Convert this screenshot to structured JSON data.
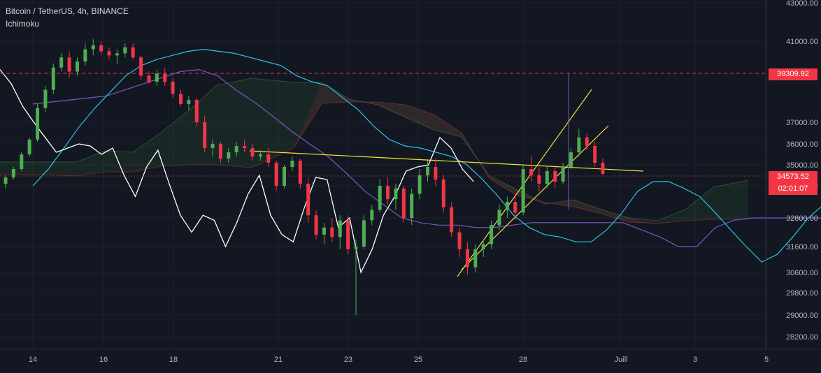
{
  "header": {
    "symbol_line": "Bitcoin / TetherUS, 4h, BINANCE",
    "indicator": "Ichimoku"
  },
  "colors": {
    "background": "#131722",
    "grid": "#1e222d",
    "up": "#26a69a",
    "up_candle": "#4caf50",
    "down": "#f23645",
    "tenkan": "#2bc2e6",
    "kijun": "#7e57c2",
    "chikou": "#ffffff",
    "trendline": "#f0e53b",
    "level": "#f23645",
    "text": "#b2b5be"
  },
  "badges": {
    "last_price": "34573.52",
    "countdown": "02:01:07",
    "level_price": "39309.92"
  },
  "chart_data": {
    "type": "candlestick",
    "title": "Bitcoin / TetherUS, 4h, BINANCE",
    "indicator": "Ichimoku",
    "y_axis": {
      "side": "right",
      "ticks": [
        43000,
        41000,
        37000,
        36000,
        35000,
        34000,
        32800,
        31600,
        30600,
        29800,
        29000,
        28200
      ],
      "tick_labels": [
        "43000.00",
        "41000.00",
        "37000.00",
        "36000.00",
        "35000.00",
        "34000.00",
        "32800.00",
        "31600.00",
        "30600.00",
        "29800.00",
        "29000.00",
        "28200.00"
      ]
    },
    "x_axis": {
      "ticks": [
        0,
        6,
        12,
        18,
        24,
        30,
        36,
        42,
        48,
        54,
        60
      ],
      "tick_labels": [
        "14",
        "16",
        "18",
        "21",
        "23",
        "25",
        "28",
        "Juill",
        "3",
        "5",
        ""
      ]
    },
    "candles": [
      [
        34100,
        34500,
        33900,
        34400
      ],
      [
        34400,
        34900,
        34300,
        34800
      ],
      [
        34800,
        35600,
        34700,
        35500
      ],
      [
        35500,
        36300,
        35400,
        36200
      ],
      [
        36200,
        37900,
        36100,
        37700
      ],
      [
        37700,
        38800,
        37500,
        38600
      ],
      [
        38600,
        39900,
        38400,
        39700
      ],
      [
        39700,
        40400,
        39500,
        40200
      ],
      [
        40200,
        40500,
        39200,
        39500
      ],
      [
        39500,
        40200,
        39300,
        40000
      ],
      [
        40000,
        40900,
        39800,
        40600
      ],
      [
        40600,
        41100,
        40300,
        40800
      ],
      [
        40800,
        41000,
        40300,
        40500
      ],
      [
        40500,
        40700,
        40100,
        40300
      ],
      [
        40300,
        40600,
        39900,
        40400
      ],
      [
        40400,
        40900,
        40200,
        40700
      ],
      [
        40700,
        40900,
        40100,
        40200
      ],
      [
        40200,
        40300,
        39100,
        39300
      ],
      [
        39300,
        39500,
        38900,
        39000
      ],
      [
        39000,
        39600,
        38800,
        39400
      ],
      [
        39400,
        39700,
        38800,
        39000
      ],
      [
        39000,
        39200,
        38200,
        38400
      ],
      [
        38400,
        38600,
        37800,
        37900
      ],
      [
        37900,
        38300,
        37600,
        38100
      ],
      [
        38100,
        38200,
        36800,
        37000
      ],
      [
        37000,
        37300,
        35600,
        35800
      ],
      [
        35800,
        36200,
        35400,
        36000
      ],
      [
        36000,
        36100,
        35100,
        35300
      ],
      [
        35300,
        35800,
        35100,
        35600
      ],
      [
        35600,
        36100,
        35400,
        35900
      ],
      [
        35900,
        36200,
        35600,
        35800
      ],
      [
        35800,
        36000,
        35200,
        35400
      ],
      [
        35400,
        35700,
        35200,
        35500
      ],
      [
        35500,
        35800,
        34900,
        35100
      ],
      [
        35100,
        35200,
        33800,
        34000
      ],
      [
        34000,
        35000,
        33900,
        34900
      ],
      [
        34900,
        35400,
        34700,
        35200
      ],
      [
        35200,
        35300,
        33900,
        34100
      ],
      [
        34100,
        34400,
        32600,
        32900
      ],
      [
        32900,
        33100,
        31900,
        32100
      ],
      [
        32100,
        32600,
        31700,
        32400
      ],
      [
        32400,
        32800,
        31800,
        32000
      ],
      [
        32000,
        32900,
        31500,
        32700
      ],
      [
        32700,
        32900,
        31300,
        31500
      ],
      [
        31500,
        31900,
        29000,
        31600
      ],
      [
        31600,
        32900,
        31500,
        32700
      ],
      [
        32700,
        33300,
        32500,
        33100
      ],
      [
        33100,
        34300,
        33000,
        34000
      ],
      [
        34000,
        34400,
        33300,
        33500
      ],
      [
        33500,
        34100,
        33100,
        33900
      ],
      [
        33900,
        34000,
        32600,
        32800
      ],
      [
        32800,
        33900,
        32500,
        33700
      ],
      [
        33700,
        34800,
        33500,
        34500
      ],
      [
        34500,
        35200,
        34200,
        34900
      ],
      [
        34900,
        35300,
        34000,
        34300
      ],
      [
        34300,
        34500,
        33000,
        33200
      ],
      [
        33200,
        33400,
        32000,
        32200
      ],
      [
        32200,
        32400,
        31200,
        31500
      ],
      [
        31500,
        31800,
        30500,
        30800
      ],
      [
        30800,
        31700,
        30600,
        31500
      ],
      [
        31500,
        31900,
        31200,
        31700
      ],
      [
        31700,
        32700,
        31500,
        32500
      ],
      [
        32500,
        33300,
        32300,
        33100
      ],
      [
        33100,
        33600,
        32800,
        33400
      ],
      [
        33400,
        33700,
        32700,
        33000
      ],
      [
        33000,
        35000,
        32900,
        34800
      ],
      [
        34800,
        35400,
        34200,
        34500
      ],
      [
        34500,
        34900,
        33800,
        34100
      ],
      [
        34100,
        34900,
        33900,
        34700
      ],
      [
        34700,
        34900,
        33900,
        34200
      ],
      [
        34200,
        35100,
        34100,
        34900
      ],
      [
        34900,
        35800,
        34800,
        35600
      ],
      [
        35600,
        36700,
        35400,
        36300
      ],
      [
        36300,
        36500,
        35700,
        35900
      ],
      [
        35900,
        36100,
        34900,
        35100
      ],
      [
        35100,
        35300,
        34500,
        34573.52
      ]
    ],
    "tenkan": [
      34000,
      34800,
      35800,
      36800,
      37700,
      38500,
      39300,
      39800,
      40100,
      40300,
      40500,
      40600,
      40500,
      40400,
      40200,
      40000,
      39800,
      39300,
      39000,
      38800,
      38200,
      37600,
      36800,
      36200,
      35900,
      35800,
      35600,
      35400,
      35000,
      34300,
      33600,
      32900,
      32400,
      32100,
      32000,
      31800,
      31800,
      32300,
      33000,
      33800,
      34200,
      34200,
      33900,
      33600,
      33000,
      32300,
      31600,
      31000,
      31300,
      32000,
      32800,
      33300,
      33800,
      34300,
      34700,
      35000,
      35200,
      35300
    ],
    "kijun": [
      37900,
      38000,
      38100,
      38200,
      38300,
      38600,
      38900,
      39200,
      39500,
      39600,
      39300,
      38600,
      38000,
      37300,
      36600,
      36000,
      35400,
      34600,
      33800,
      33300,
      32800,
      32600,
      32500,
      32500,
      32400,
      32400,
      32500,
      32600,
      32600,
      32600,
      32600,
      32600,
      32600,
      32300,
      32000,
      31600,
      31600,
      32400,
      32700,
      32800,
      32800,
      32800,
      32800,
      32800,
      32800,
      33200,
      33500,
      33600,
      33600
    ],
    "chikou": [
      39600,
      38900,
      37800,
      37000,
      36300,
      35600,
      35800,
      36000,
      35900,
      35500,
      35800,
      34500,
      33600,
      34900,
      35700,
      34100,
      32900,
      32200,
      32900,
      32700,
      31600,
      32600,
      33700,
      34500,
      32900,
      32100,
      31800,
      33200,
      34400,
      34300,
      32400,
      32800,
      30600,
      31500,
      32900,
      33600,
      34700,
      34900,
      35000,
      36300,
      35800,
      34800,
      34200
    ]
  }
}
